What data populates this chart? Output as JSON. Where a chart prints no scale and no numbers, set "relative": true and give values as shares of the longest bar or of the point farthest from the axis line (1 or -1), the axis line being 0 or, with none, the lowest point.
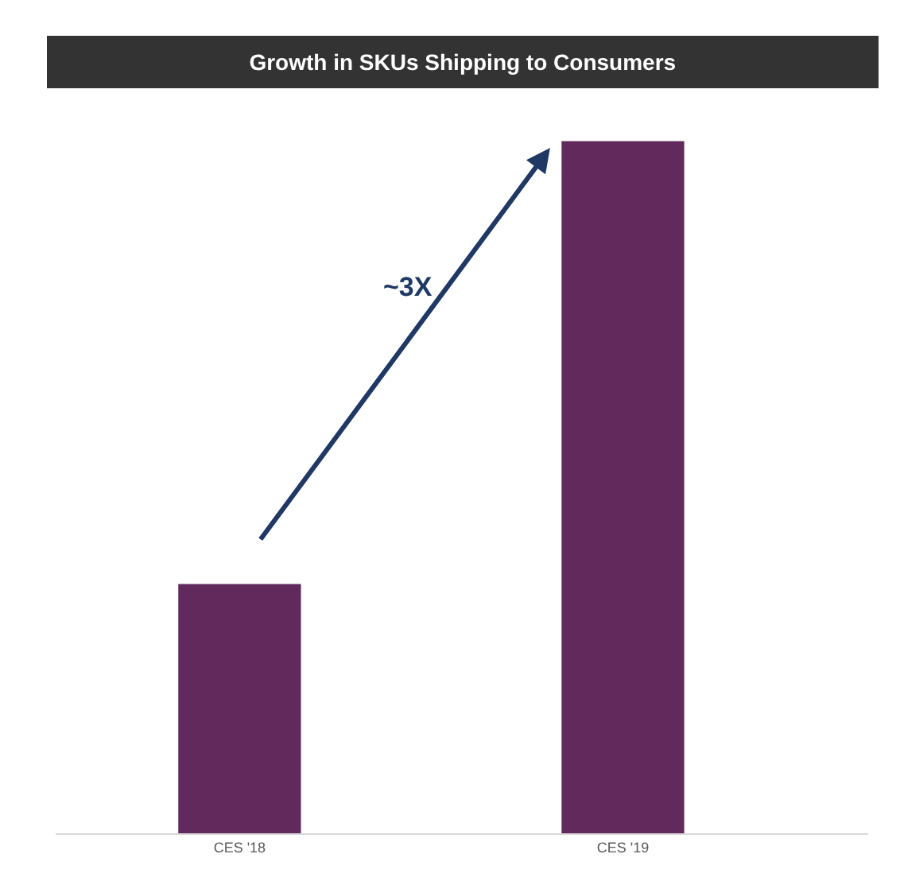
{
  "chart_data": {
    "type": "bar",
    "title": "Growth in SKUs Shipping to Consumers",
    "categories": [
      "CES '18",
      "CES '19"
    ],
    "values": [
      0.36,
      1
    ],
    "color": "#622a5c",
    "relative": true,
    "annotations": [
      "~3X"
    ]
  }
}
